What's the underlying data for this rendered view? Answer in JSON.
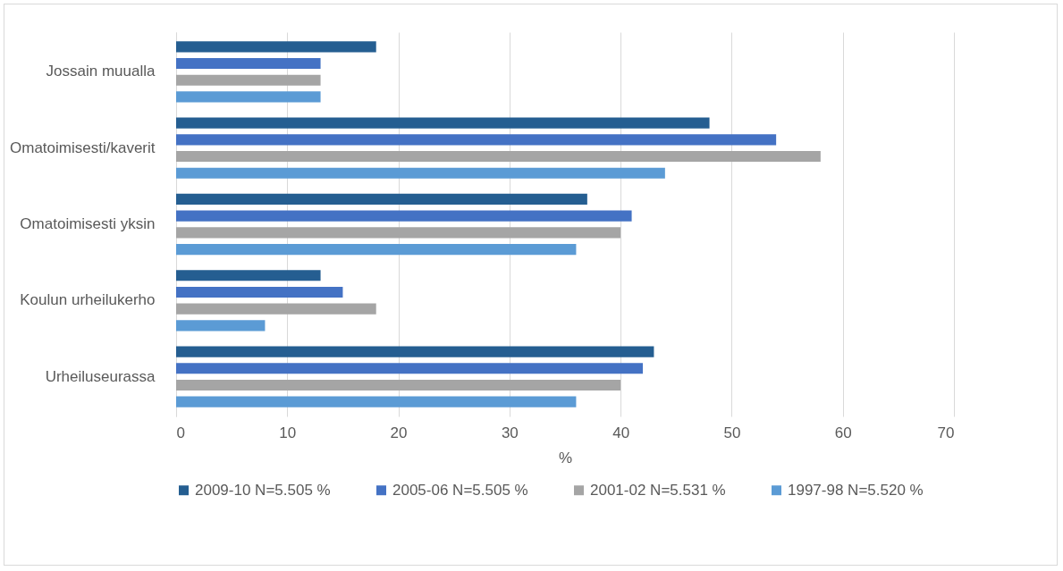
{
  "chart_data": {
    "type": "bar",
    "orientation": "horizontal",
    "categories": [
      "Jossain muualla",
      "Omatoimisesti/kaverit",
      "Omatoimisesti yksin",
      "Koulun urheilukerho",
      "Urheiluseurassa"
    ],
    "series": [
      {
        "name": "2009-10 N=5.505 %",
        "color": "#255e91",
        "values": [
          18,
          48,
          37,
          13,
          43
        ]
      },
      {
        "name": "2005-06 N=5.505 %",
        "color": "#4472c4",
        "values": [
          13,
          54,
          41,
          15,
          42
        ]
      },
      {
        "name": "2001-02 N=5.531 %",
        "color": "#a5a5a5",
        "values": [
          13,
          58,
          40,
          18,
          40
        ]
      },
      {
        "name": "1997-98 N=5.520 %",
        "color": "#5b9bd5",
        "values": [
          13,
          44,
          36,
          8,
          36
        ]
      }
    ],
    "xlabel": "%",
    "xlim": [
      0,
      70
    ],
    "xticks": [
      0,
      10,
      20,
      30,
      40,
      50,
      60,
      70
    ],
    "grid": "x",
    "legend": "bottom"
  }
}
